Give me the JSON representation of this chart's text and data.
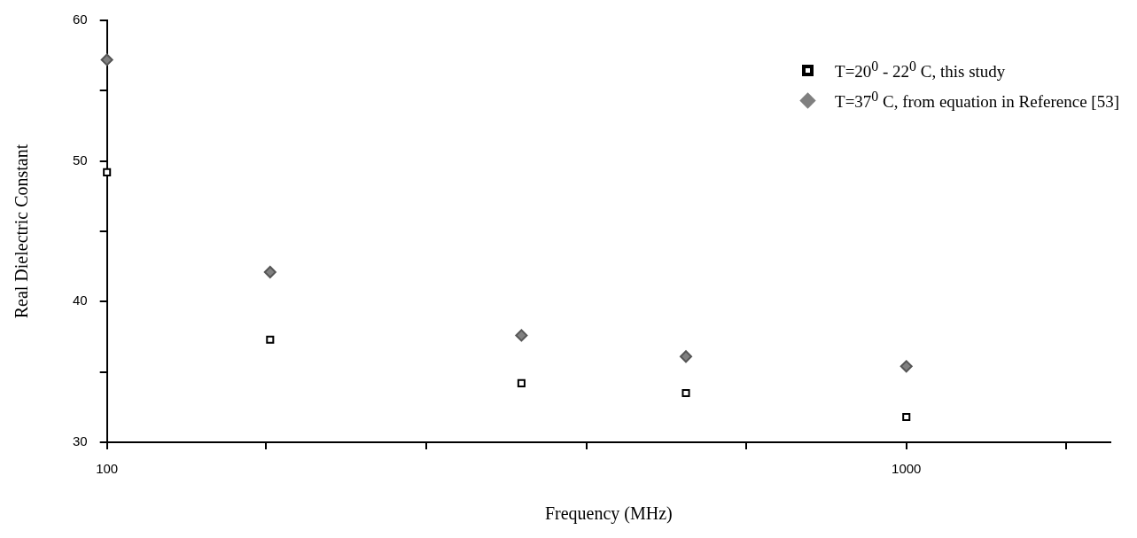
{
  "chart_data": {
    "type": "scatter",
    "xlabel": "Frequency (MHz)",
    "ylabel": "Real Dielectric Constant",
    "log": "x",
    "grid": false,
    "legend": "top right",
    "xlim": [
      100,
      1800
    ],
    "ylim": [
      30,
      60
    ],
    "xticks": [
      100,
      {
        "value": 158,
        "label": null
      },
      {
        "value": 251,
        "label": null
      },
      {
        "value": 398,
        "label": null
      },
      {
        "value": 631,
        "label": null
      },
      1000,
      {
        "value": 1585,
        "label": null
      }
    ],
    "yticks": [
      30,
      {
        "value": 35,
        "label": null
      },
      40,
      {
        "value": 45,
        "label": null
      },
      50,
      {
        "value": 55,
        "label": null
      },
      60
    ],
    "x": [
      100,
      160,
      330,
      530,
      1000
    ],
    "series": [
      {
        "name": "T=20$^{0}$ - 22$^{0}$ C, this study",
        "color": "#000000",
        "marker": "square",
        "values": [
          49.2,
          37.3,
          34.2,
          33.5,
          31.8
        ]
      },
      {
        "name": "T=37$^{0}$ C, from equation in Reference [53]",
        "color": "#808080",
        "marker": "diamond",
        "values": [
          57.2,
          42.1,
          37.6,
          36.1,
          35.4
        ]
      }
    ]
  }
}
